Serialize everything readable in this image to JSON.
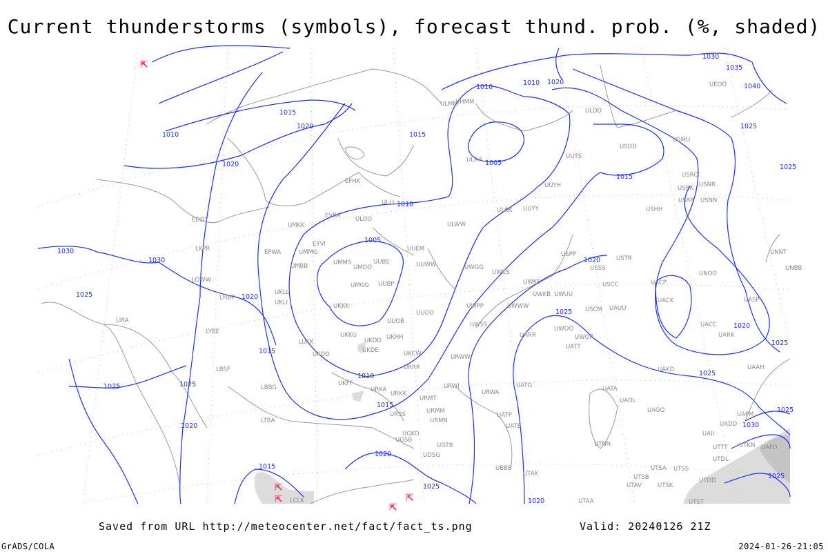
{
  "header": {
    "title": "Current thunderstorms (symbols), forecast thund. prob. (%, shaded)"
  },
  "footer": {
    "source": "Saved from URL http://meteocenter.net/fact/fact_ts.png",
    "valid": "Valid: 20240126 21Z",
    "software": "GrADS/COLA",
    "generated": "2024-01-26-21:05"
  },
  "map": {
    "isobar_color": "#1a2cff",
    "coast_color": "#9a9a9a",
    "thunderstorm_color": "#ff2a5a",
    "thunderstorm_icon": "thunderstorm-symbol",
    "shading_color": "#d8d8d8",
    "stations": [
      "ULMM",
      "ULDD",
      "USDD",
      "USMU",
      "UUYS",
      "ULAA",
      "UUYH",
      "ULKK",
      "UUYY",
      "USRO",
      "USRK",
      "USNR",
      "USRR",
      "USNN",
      "USHH",
      "ULWW",
      "UUEM",
      "UUWW",
      "UWGG",
      "UWKS",
      "UWKE",
      "UWKB",
      "UWUU",
      "UWWW",
      "UWPP",
      "UWSS",
      "URWW",
      "URWI",
      "URMT",
      "URMM",
      "URMN",
      "URSS",
      "URKK",
      "URKA",
      "UKFF",
      "URRR",
      "UKCW",
      "UKDE",
      "UKDD",
      "UKHH",
      "UKKG",
      "UUOB",
      "UUOO",
      "UKKK",
      "UMGG",
      "UUBP",
      "UMMS",
      "UMOO",
      "UUBS",
      "UMBB",
      "UMMG",
      "EYVI",
      "UMKK",
      "EVRA",
      "ULOO",
      "ULLI",
      "EFHK",
      "EDDT",
      "LKPR",
      "LOWW",
      "LHBP",
      "EPWA",
      "UKLL",
      "UKLI",
      "LYBE",
      "LBSF",
      "LBBG",
      "LTBA",
      "LIRA",
      "LUKK",
      "UKOO",
      "UGKO",
      "UGSB",
      "UGTB",
      "UDSG",
      "UBBB",
      "UTAK",
      "UATE",
      "UATP",
      "URWA",
      "UATG",
      "UWOO",
      "UWOR",
      "UATT",
      "UARR",
      "USCM",
      "UAUU",
      "USCC",
      "USSS",
      "USPP",
      "USTR",
      "UACP",
      "UACK",
      "UACC",
      "UARK",
      "UAKD",
      "UNOO",
      "UASP",
      "UAAH",
      "UNNT",
      "UNBB",
      "UATA",
      "UAOL",
      "UAGO",
      "UTNN",
      "UADD",
      "UAII",
      "UTTT",
      "UTKN",
      "UAFO",
      "UAFM",
      "UTDL",
      "UTSA",
      "UTSB",
      "UTSS",
      "UTAV",
      "UTSK",
      "UTDD",
      "UTST",
      "UTAA",
      "LCLK",
      "UHMM",
      "UEOO"
    ],
    "isobar_labels": [
      "1005",
      "1005",
      "1010",
      "1010",
      "1010",
      "1010",
      "1015",
      "1015",
      "1015",
      "1015",
      "1015",
      "1015",
      "1020",
      "1020",
      "1020",
      "1020",
      "1020",
      "1020",
      "1020",
      "1020",
      "1025",
      "1025",
      "1025",
      "1025",
      "1025",
      "1025",
      "1025",
      "1025",
      "1025",
      "1025",
      "1030",
      "1030",
      "1030",
      "1030",
      "1035",
      "1040",
      "1010",
      "1020",
      "1025"
    ]
  }
}
